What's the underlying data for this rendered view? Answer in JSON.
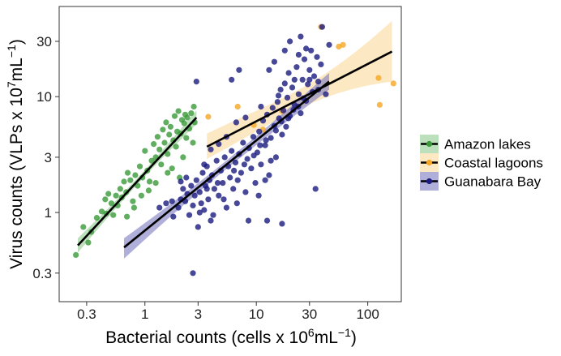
{
  "chart_data": {
    "type": "scatter",
    "scale": "log10",
    "xlabel_main": "Bacterial counts (cells x 10",
    "xlabel_exp": "6",
    "xlabel_mid": "mL",
    "xlabel_exp2": "−1",
    "xlabel_end": ")",
    "ylabel_main": "Virus counts (VLPs x 10",
    "ylabel_exp": "7",
    "ylabel_mid": "mL",
    "ylabel_exp2": "−1",
    "ylabel_end": ")",
    "xlim": [
      0.17,
      200
    ],
    "ylim": [
      0.17,
      60
    ],
    "x_ticks": [
      {
        "value": 0.3,
        "label": "0.3"
      },
      {
        "value": 1,
        "label": "1"
      },
      {
        "value": 3,
        "label": "3"
      },
      {
        "value": 10,
        "label": "10"
      },
      {
        "value": 30,
        "label": "30"
      },
      {
        "value": 100,
        "label": "100"
      }
    ],
    "y_ticks": [
      {
        "value": 0.3,
        "label": "0.3"
      },
      {
        "value": 1,
        "label": "1"
      },
      {
        "value": 3,
        "label": "3"
      },
      {
        "value": 10,
        "label": "10"
      },
      {
        "value": 30,
        "label": "30"
      }
    ],
    "grid": false,
    "legend_position": "right",
    "series": [
      {
        "name": "Amazon lakes",
        "color": "#3a9a3a",
        "band_color": "#8fc98f",
        "fit": {
          "x": [
            0.25,
            2.9
          ],
          "y": [
            0.52,
            6.6
          ]
        },
        "band": {
          "x": [
            0.25,
            2.9
          ],
          "lower": [
            0.45,
            5.8
          ],
          "upper": [
            0.6,
            7.6
          ]
        },
        "points": [
          [
            0.24,
            0.43
          ],
          [
            0.28,
            0.75
          ],
          [
            0.31,
            0.55
          ],
          [
            0.33,
            0.68
          ],
          [
            0.37,
            0.9
          ],
          [
            0.41,
            1.02
          ],
          [
            0.44,
            1.3
          ],
          [
            0.47,
            1.45
          ],
          [
            0.5,
            1.2
          ],
          [
            0.52,
            0.95
          ],
          [
            0.55,
            1.4
          ],
          [
            0.57,
            1.15
          ],
          [
            0.6,
            1.6
          ],
          [
            0.62,
            1.35
          ],
          [
            0.65,
            1.85
          ],
          [
            0.68,
            1.5
          ],
          [
            0.7,
            2.2
          ],
          [
            0.74,
            1.9
          ],
          [
            0.78,
            1.25
          ],
          [
            0.82,
            2.1
          ],
          [
            0.86,
            1.7
          ],
          [
            0.9,
            2.5
          ],
          [
            0.95,
            2.0
          ],
          [
            1.0,
            3.4
          ],
          [
            1.05,
            2.3
          ],
          [
            1.1,
            1.85
          ],
          [
            1.15,
            2.8
          ],
          [
            1.2,
            3.9
          ],
          [
            1.25,
            3.0
          ],
          [
            1.3,
            4.5
          ],
          [
            1.35,
            3.5
          ],
          [
            1.4,
            2.6
          ],
          [
            1.45,
            5.2
          ],
          [
            1.5,
            4.0
          ],
          [
            1.55,
            6.0
          ],
          [
            1.6,
            3.2
          ],
          [
            1.65,
            4.7
          ],
          [
            1.7,
            5.5
          ],
          [
            1.75,
            2.4
          ],
          [
            1.8,
            4.2
          ],
          [
            1.85,
            6.8
          ],
          [
            1.9,
            3.7
          ],
          [
            1.95,
            5.0
          ],
          [
            2.0,
            7.5
          ],
          [
            2.05,
            2.0
          ],
          [
            2.1,
            4.8
          ],
          [
            2.15,
            6.3
          ],
          [
            2.2,
            3.0
          ],
          [
            2.25,
            5.9
          ],
          [
            2.3,
            7.0
          ],
          [
            2.35,
            4.4
          ],
          [
            2.4,
            6.6
          ],
          [
            2.5,
            5.3
          ],
          [
            2.6,
            7.2
          ],
          [
            2.7,
            4.0
          ],
          [
            2.75,
            8.2
          ],
          [
            0.69,
            0.92
          ],
          [
            0.8,
            1.1
          ],
          [
            1.25,
            1.8
          ],
          [
            1.6,
            2.2
          ],
          [
            2.8,
            6.0
          ],
          [
            0.45,
            0.98
          ],
          [
            0.93,
            1.4
          ],
          [
            1.08,
            1.55
          ]
        ]
      },
      {
        "name": "Coastal lagoons",
        "color": "#f5a623",
        "band_color": "#fbd89c",
        "fit": {
          "x": [
            3.6,
            165
          ],
          "y": [
            3.7,
            24.5
          ]
        },
        "band": {
          "x": [
            3.6,
            165
          ],
          "lower": [
            2.9,
            13.5
          ],
          "upper": [
            4.8,
            45
          ]
        },
        "points": [
          [
            3.7,
            6.7
          ],
          [
            6.8,
            8.2
          ],
          [
            9.5,
            5.7
          ],
          [
            11.5,
            5.2
          ],
          [
            17,
            7.5
          ],
          [
            38,
            40
          ],
          [
            55,
            27
          ],
          [
            60,
            28
          ],
          [
            125,
            14.5
          ],
          [
            128,
            8.5
          ],
          [
            170,
            13
          ]
        ]
      },
      {
        "name": "Guanabara Bay",
        "color": "#1a1a80",
        "band_color": "#7a7ac0",
        "fit": {
          "x": [
            0.65,
            45
          ],
          "y": [
            0.5,
            13.5
          ]
        },
        "band": {
          "x": [
            0.65,
            45
          ],
          "lower": [
            0.4,
            11.5
          ],
          "upper": [
            0.6,
            16
          ]
        },
        "points": [
          [
            1.8,
            0.92
          ],
          [
            2.0,
            1.1
          ],
          [
            2.1,
            1.3
          ],
          [
            2.2,
            1.6
          ],
          [
            2.3,
            1.25
          ],
          [
            2.4,
            1.45
          ],
          [
            2.5,
            0.95
          ],
          [
            2.6,
            1.7
          ],
          [
            2.7,
            1.15
          ],
          [
            2.8,
            1.4
          ],
          [
            2.9,
            1.9
          ],
          [
            3.0,
            0.75
          ],
          [
            3.1,
            1.5
          ],
          [
            3.2,
            1.2
          ],
          [
            3.3,
            2.2
          ],
          [
            3.4,
            1.05
          ],
          [
            3.5,
            1.7
          ],
          [
            3.6,
            2.5
          ],
          [
            3.7,
            1.3
          ],
          [
            3.8,
            1.9
          ],
          [
            3.9,
            0.85
          ],
          [
            4.0,
            2.1
          ],
          [
            4.2,
            1.6
          ],
          [
            4.4,
            2.8
          ],
          [
            4.6,
            1.4
          ],
          [
            4.8,
            2.3
          ],
          [
            5.0,
            1.8
          ],
          [
            5.2,
            3.0
          ],
          [
            5.4,
            1.1
          ],
          [
            5.6,
            2.5
          ],
          [
            5.8,
            2.0
          ],
          [
            6.0,
            3.4
          ],
          [
            6.2,
            1.6
          ],
          [
            6.5,
            2.7
          ],
          [
            6.8,
            1.9
          ],
          [
            7.0,
            3.2
          ],
          [
            7.3,
            2.2
          ],
          [
            7.6,
            4.0
          ],
          [
            8.0,
            1.5
          ],
          [
            8.3,
            2.9
          ],
          [
            8.6,
            3.6
          ],
          [
            9.0,
            2.4
          ],
          [
            9.4,
            4.5
          ],
          [
            9.8,
            1.8
          ],
          [
            10.2,
            3.3
          ],
          [
            10.6,
            5.0
          ],
          [
            11,
            2.6
          ],
          [
            11.5,
            6.2
          ],
          [
            12,
            3.8
          ],
          [
            12.5,
            7.0
          ],
          [
            13,
            2.1
          ],
          [
            13.5,
            4.4
          ],
          [
            14,
            8.0
          ],
          [
            14.5,
            5.6
          ],
          [
            15,
            3.0
          ],
          [
            15.5,
            9.0
          ],
          [
            16,
            6.5
          ],
          [
            16.5,
            11.5
          ],
          [
            17,
            4.7
          ],
          [
            17.5,
            7.6
          ],
          [
            18,
            13
          ],
          [
            18.5,
            5.5
          ],
          [
            19,
            9.8
          ],
          [
            19.5,
            16
          ],
          [
            20,
            6.8
          ],
          [
            21,
            12
          ],
          [
            22,
            8.5
          ],
          [
            23,
            18
          ],
          [
            24,
            10.5
          ],
          [
            25,
            7.2
          ],
          [
            26,
            14
          ],
          [
            27,
            21
          ],
          [
            28,
            9.2
          ],
          [
            29,
            12.8
          ],
          [
            30,
            17
          ],
          [
            31,
            25
          ],
          [
            32,
            11
          ],
          [
            33,
            15
          ],
          [
            34,
            1.6
          ],
          [
            35,
            22
          ],
          [
            36,
            13.5
          ],
          [
            38,
            19
          ],
          [
            42,
            10.5
          ],
          [
            45,
            28
          ],
          [
            12.5,
            0.85
          ],
          [
            17,
            0.8
          ],
          [
            8.5,
            0.85
          ],
          [
            3.1,
            1.0
          ],
          [
            2.7,
            0.3
          ],
          [
            2.9,
            13.5
          ],
          [
            7,
            17
          ],
          [
            6,
            14
          ],
          [
            13,
            17
          ],
          [
            14.5,
            20
          ],
          [
            18,
            25
          ],
          [
            20,
            30
          ],
          [
            22,
            14
          ],
          [
            24,
            23
          ],
          [
            28,
            26
          ],
          [
            30,
            14
          ],
          [
            36,
            11.5
          ],
          [
            39,
            40
          ],
          [
            25,
            33
          ],
          [
            15.8,
            10.2
          ],
          [
            11,
            8.2
          ],
          [
            8,
            6.6
          ],
          [
            6.6,
            6.0
          ],
          [
            5.4,
            4.5
          ],
          [
            4.6,
            3.9
          ],
          [
            3.9,
            3.5
          ],
          [
            3.4,
            2.6
          ],
          [
            2.35,
            2.0
          ],
          [
            2.1,
            1.85
          ],
          [
            1.75,
            1.25
          ],
          [
            1.55,
            1.2
          ],
          [
            1.35,
            1.1
          ],
          [
            4.5,
            1.8
          ],
          [
            6.3,
            2.3
          ],
          [
            7.8,
            2.6
          ],
          [
            9.5,
            3.1
          ],
          [
            10.8,
            3.8
          ],
          [
            12.2,
            4.2
          ],
          [
            15,
            5.1
          ],
          [
            16.8,
            6.1
          ],
          [
            19.4,
            6.5
          ],
          [
            21.5,
            7.7
          ],
          [
            23.8,
            8.2
          ],
          [
            26.5,
            9.7
          ],
          [
            10.5,
            1.4
          ],
          [
            12,
            1.9
          ],
          [
            13.5,
            2.8
          ],
          [
            6.7,
            1.2
          ],
          [
            5.1,
            1.3
          ],
          [
            3.6,
            1.6
          ],
          [
            4.1,
            0.95
          ]
        ]
      }
    ]
  }
}
